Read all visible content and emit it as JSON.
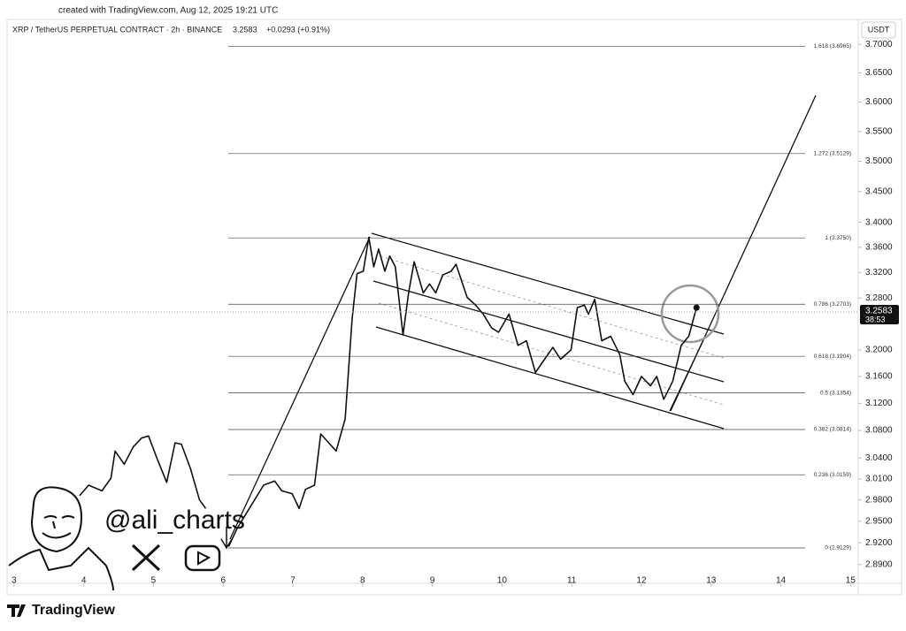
{
  "chart_data": {
    "type": "line",
    "created": "created with TradingView.com, Aug 12, 2025 19:21 UTC",
    "title": "XRP / TetherUS PERPETUAL CONTRACT · 2h · BINANCE",
    "last_price": 3.2583,
    "change": "+0.0293 (+0.91%)",
    "currency": "USDT",
    "countdown": "38:53",
    "watermark": "@ali_charts",
    "brand": "TradingView",
    "color": "#111111",
    "log_scale": true,
    "x": [
      3.94,
      4.07,
      4.26,
      4.39,
      4.45,
      4.58,
      4.71,
      4.83,
      4.93,
      5.06,
      5.19,
      5.31,
      5.4,
      5.53,
      5.66,
      5.75,
      5.9,
      6.08,
      6.2,
      6.58,
      6.74,
      6.84,
      6.99,
      7.09,
      7.18,
      7.31,
      7.4,
      7.62,
      7.75,
      7.85,
      7.92,
      8.01,
      8.09,
      8.16,
      8.23,
      8.32,
      8.39,
      8.47,
      8.58,
      8.66,
      8.74,
      8.87,
      8.96,
      9.05,
      9.15,
      9.27,
      9.34,
      9.5,
      9.62,
      9.73,
      9.85,
      9.95,
      10.1,
      10.23,
      10.35,
      10.48,
      10.61,
      10.73,
      10.84,
      10.99,
      11.08,
      11.18,
      11.24,
      11.33,
      11.43,
      11.56,
      11.69,
      11.76,
      11.88,
      12.0,
      12.13,
      12.22,
      12.32,
      12.45,
      12.57,
      12.68,
      12.79
    ],
    "values": [
      2.986,
      3.001,
      2.993,
      3.011,
      3.05,
      3.031,
      3.056,
      3.069,
      3.072,
      3.037,
      3.005,
      3.062,
      3.06,
      3.025,
      2.98,
      2.968,
      null,
      2.915,
      2.94,
      3.001,
      3.007,
      2.993,
      2.989,
      2.968,
      2.995,
      3.001,
      3.075,
      3.05,
      3.097,
      3.248,
      3.318,
      3.322,
      3.376,
      3.329,
      3.357,
      3.322,
      3.346,
      3.329,
      3.223,
      3.288,
      3.337,
      3.288,
      3.302,
      3.288,
      3.316,
      3.322,
      3.333,
      3.281,
      3.269,
      3.255,
      3.234,
      3.227,
      3.255,
      3.207,
      3.214,
      3.166,
      3.186,
      3.204,
      3.186,
      3.2,
      3.265,
      3.269,
      3.255,
      3.278,
      3.214,
      3.221,
      3.193,
      3.153,
      3.133,
      3.16,
      3.146,
      3.16,
      3.126,
      3.153,
      3.207,
      3.221,
      3.265
    ],
    "xlim": [
      2.9,
      15.11
    ],
    "xticks": [
      3,
      4,
      5,
      6,
      7,
      8,
      9,
      10,
      11,
      12,
      13,
      14,
      15
    ],
    "ylim": [
      2.8644,
      3.744
    ],
    "yticks": [
      {
        "value": 3.7,
        "label": "3.7000"
      },
      {
        "value": 3.65,
        "label": "3.6500"
      },
      {
        "value": 3.6,
        "label": "3.6000"
      },
      {
        "value": 3.55,
        "label": "3.5500"
      },
      {
        "value": 3.5,
        "label": "3.5000"
      },
      {
        "value": 3.45,
        "label": "3.4500"
      },
      {
        "value": 3.4,
        "label": "3.4000"
      },
      {
        "value": 3.36,
        "label": "3.3600"
      },
      {
        "value": 3.32,
        "label": "3.3200"
      },
      {
        "value": 3.28,
        "label": "3.2800"
      },
      {
        "value": 3.2,
        "label": "3.2000"
      },
      {
        "value": 3.16,
        "label": "3.1600"
      },
      {
        "value": 3.12,
        "label": "3.1200"
      },
      {
        "value": 3.08,
        "label": "3.0800"
      },
      {
        "value": 3.04,
        "label": "3.0400"
      },
      {
        "value": 3.01,
        "label": "3.0100"
      },
      {
        "value": 2.98,
        "label": "2.9800"
      },
      {
        "value": 2.95,
        "label": "2.9500"
      },
      {
        "value": 2.92,
        "label": "2.9200"
      },
      {
        "value": 2.89,
        "label": "2.8900"
      }
    ],
    "fib_levels": [
      {
        "value": 3.6965,
        "label": "1.618 (3.6965)"
      },
      {
        "value": 3.5129,
        "label": "1.272 (3.5129)"
      },
      {
        "value": 3.375,
        "label": "1 (3.3750)"
      },
      {
        "value": 3.2703,
        "label": "0.786 (3.2703)"
      },
      {
        "value": 3.1904,
        "label": "0.618 (3.1904)"
      },
      {
        "value": 3.1354,
        "label": "0.5 (3.1354)"
      },
      {
        "value": 3.0814,
        "label": "0.382 (3.0814)"
      },
      {
        "value": 3.0159,
        "label": "0.236 (3.0159)"
      },
      {
        "value": 2.9129,
        "label": "0 (2.9129)"
      }
    ]
  }
}
